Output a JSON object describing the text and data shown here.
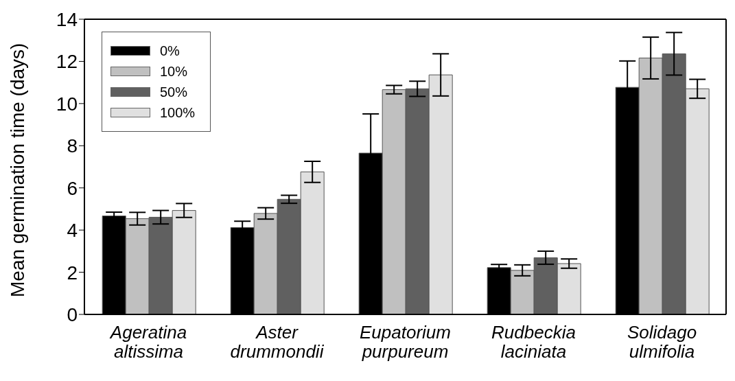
{
  "chart_data": {
    "type": "bar",
    "ylabel": "Mean germination time (days)",
    "categories": [
      "Ageratina altissima",
      "Aster drummondii",
      "Eupatorium purpureum",
      "Rudbeckia laciniata",
      "Solidago ulmifolia"
    ],
    "series": [
      {
        "name": "0%",
        "color": "#000000",
        "values": [
          4.67,
          4.12,
          7.65,
          2.22,
          10.77
        ],
        "errors": [
          0.18,
          0.3,
          1.86,
          0.15,
          1.25
        ]
      },
      {
        "name": "10%",
        "color": "#c0c0c0",
        "values": [
          4.54,
          4.79,
          10.66,
          2.09,
          12.16
        ],
        "errors": [
          0.3,
          0.27,
          0.2,
          0.26,
          0.99
        ]
      },
      {
        "name": "50%",
        "color": "#606060",
        "values": [
          4.61,
          5.46,
          10.7,
          2.69,
          12.36
        ],
        "errors": [
          0.32,
          0.19,
          0.36,
          0.31,
          1.01
        ]
      },
      {
        "name": "100%",
        "color": "#e0e0e0",
        "values": [
          4.93,
          6.76,
          11.36,
          2.41,
          10.7
        ],
        "errors": [
          0.33,
          0.5,
          1.0,
          0.22,
          0.45
        ]
      }
    ],
    "ylim": [
      0,
      14
    ],
    "yticks": [
      0,
      2,
      4,
      6,
      8,
      10,
      12,
      14
    ],
    "legend": "top left"
  }
}
